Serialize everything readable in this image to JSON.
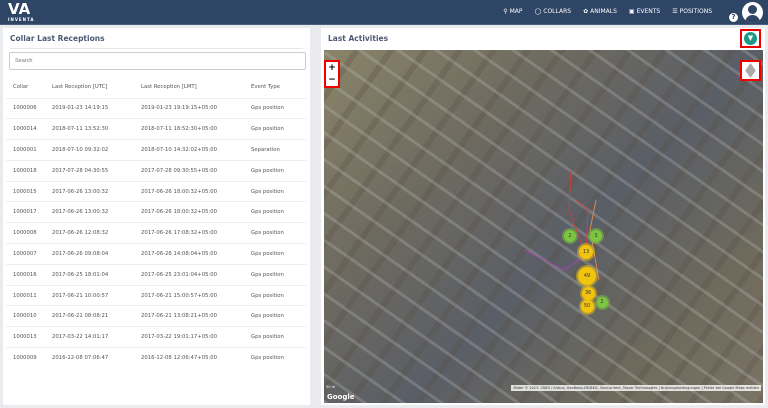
{
  "header": {
    "logo": "VA",
    "logo_sub": "INVENTA",
    "menu": [
      {
        "icon": "map-pin-icon",
        "glyph": "⚲",
        "label": "MAP"
      },
      {
        "icon": "collar-icon",
        "glyph": "◯",
        "label": "COLLARS"
      },
      {
        "icon": "paw-icon",
        "glyph": "✿",
        "label": "ANIMALS"
      },
      {
        "icon": "calendar-icon",
        "glyph": "▣",
        "label": "EVENTS"
      },
      {
        "icon": "list-icon",
        "glyph": "☰",
        "label": "POSITIONS"
      }
    ],
    "help": "?"
  },
  "left": {
    "title": "Collar Last Receptions",
    "search_placeholder": "Search",
    "columns": [
      "Collar",
      "Last Reception [UTC]",
      "Last Reception [LMT]",
      "Event Type"
    ],
    "rows": [
      [
        "1000006",
        "2019-01-23 14:19:15",
        "2019-01-23 19:19:15+05:00",
        "Gps position"
      ],
      [
        "1000014",
        "2018-07-11 13:52:30",
        "2018-07-11 18:52:30+05:00",
        "Gps position"
      ],
      [
        "1000001",
        "2018-07-10 09:32:02",
        "2018-07-10 14:32:02+05:00",
        "Separation"
      ],
      [
        "1000018",
        "2017-07-28 04:30:55",
        "2017-07-28 09:30:55+05:00",
        "Gps position"
      ],
      [
        "1000015",
        "2017-06-26 13:00:32",
        "2017-06-26 18:00:32+05:00",
        "Gps position"
      ],
      [
        "1000017",
        "2017-06-26 13:00:32",
        "2017-06-26 18:00:32+05:00",
        "Gps position"
      ],
      [
        "1000008",
        "2017-06-26 12:08:32",
        "2017-06-26 17:08:32+05:00",
        "Gps position"
      ],
      [
        "1000007",
        "2017-06-26 09:08:04",
        "2017-06-26 14:08:04+05:00",
        "Gps position"
      ],
      [
        "1000016",
        "2017-06-25 18:01:04",
        "2017-06-25 23:01:04+05:00",
        "Gps position"
      ],
      [
        "1000011",
        "2017-06-21 10:00:57",
        "2017-06-21 15:00:57+05:00",
        "Gps position"
      ],
      [
        "1000010",
        "2017-06-21 08:08:21",
        "2017-06-21 13:08:21+05:00",
        "Gps position"
      ],
      [
        "1000013",
        "2017-03-22 14:01:17",
        "2017-03-22 19:01:17+05:00",
        "Gps position"
      ],
      [
        "1000009",
        "2016-12-08 07:06:47",
        "2016-12-08 12:06:47+05:00",
        "Gps position"
      ]
    ]
  },
  "right": {
    "title": "Last Activities",
    "zoom_in": "+",
    "zoom_out": "−",
    "clusters": [
      {
        "count": "2",
        "color": "green"
      },
      {
        "count": "3",
        "color": "green"
      },
      {
        "count": "13",
        "color": "yellow"
      },
      {
        "count": "49",
        "color": "yellow"
      },
      {
        "count": "36",
        "color": "yellow"
      },
      {
        "count": "50",
        "color": "yellow"
      },
      {
        "count": "2",
        "color": "green"
      }
    ],
    "attribution": "Bilder © 2023, CNES / Airbus, GeoBasis-DE/BKG, GeoContent, Maxar Technologies | Nutzungsbedingungen | Fehler bei Google Maps melden",
    "google": "Google",
    "scale": "50 m"
  }
}
